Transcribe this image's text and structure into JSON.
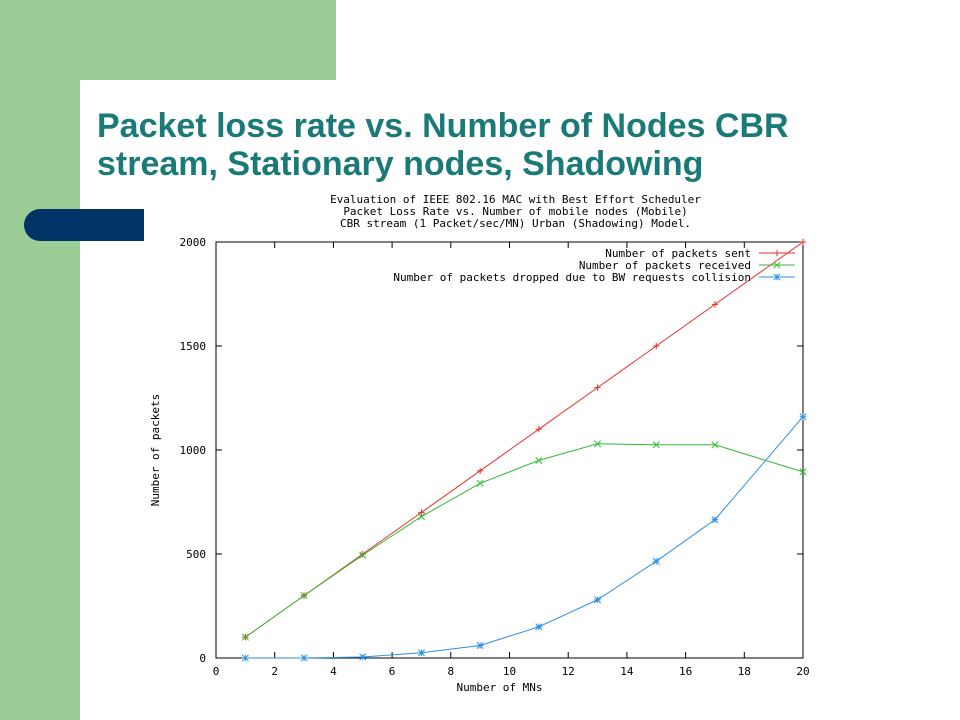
{
  "slide": {
    "title": "Packet loss rate vs. Number of Nodes CBR stream, Stationary nodes, Shadowing"
  },
  "colors": {
    "sidebar_green": "#9dcd97",
    "accent_navy": "#003366",
    "title_teal": "#1a7a78"
  },
  "chart_data": {
    "type": "line",
    "title": [
      "Evaluation of IEEE 802.16 MAC with Best Effort Scheduler",
      "Packet Loss Rate vs. Number of mobile nodes (Mobile)",
      "CBR stream (1 Packet/sec/MN) Urban (Shadowing) Model."
    ],
    "xlabel": "Number of MNs",
    "ylabel": "Number of packets",
    "xlim": [
      0,
      20
    ],
    "ylim": [
      0,
      2000
    ],
    "xticks": [
      0,
      2,
      4,
      6,
      8,
      10,
      12,
      14,
      16,
      18,
      20
    ],
    "yticks": [
      0,
      500,
      1000,
      1500,
      2000
    ],
    "grid": false,
    "legend_position": "top-right",
    "series": [
      {
        "name": "Number of packets sent",
        "color": "#e8302c",
        "marker": "plus",
        "points": [
          [
            1,
            100
          ],
          [
            3,
            300
          ],
          [
            5,
            500
          ],
          [
            7,
            700
          ],
          [
            9,
            900
          ],
          [
            11,
            1100
          ],
          [
            13,
            1300
          ],
          [
            15,
            1500
          ],
          [
            17,
            1700
          ],
          [
            20,
            2000
          ]
        ]
      },
      {
        "name": "Number of packets received",
        "color": "#33bb33",
        "marker": "cross",
        "points": [
          [
            1,
            100
          ],
          [
            3,
            300
          ],
          [
            5,
            495
          ],
          [
            7,
            680
          ],
          [
            9,
            840
          ],
          [
            11,
            950
          ],
          [
            13,
            1030
          ],
          [
            15,
            1025
          ],
          [
            17,
            1025
          ],
          [
            20,
            895
          ]
        ]
      },
      {
        "name": "Number of packets dropped due to BW requests collision",
        "color": "#2d8fe0",
        "marker": "star",
        "points": [
          [
            1,
            0
          ],
          [
            3,
            0
          ],
          [
            5,
            5
          ],
          [
            7,
            25
          ],
          [
            9,
            60
          ],
          [
            11,
            150
          ],
          [
            13,
            280
          ],
          [
            15,
            465
          ],
          [
            17,
            665
          ],
          [
            20,
            1160
          ]
        ]
      }
    ]
  }
}
